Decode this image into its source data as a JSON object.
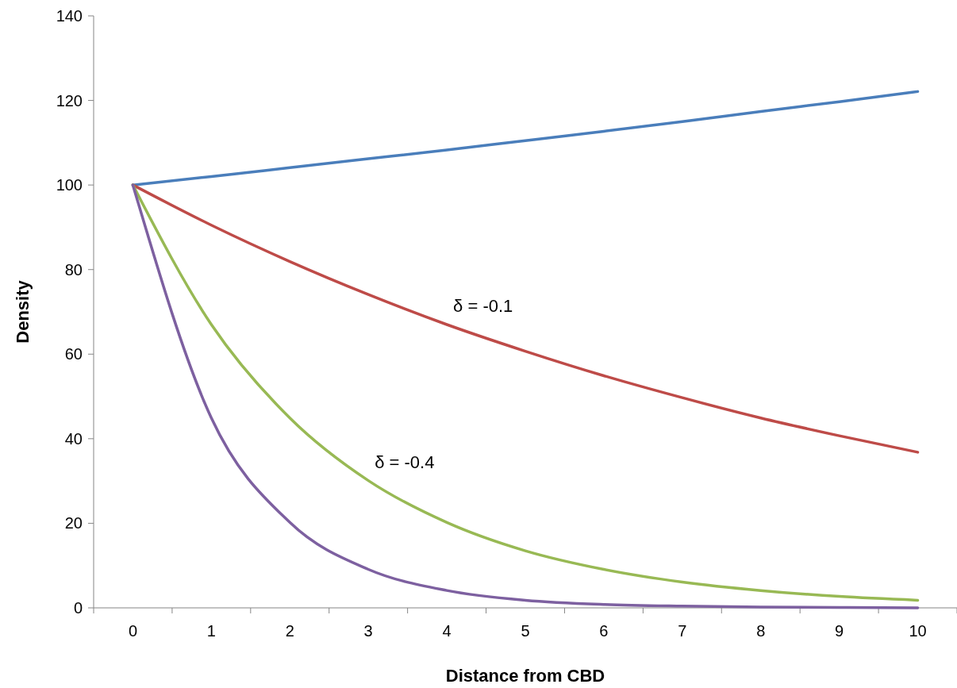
{
  "chart_data": {
    "type": "line",
    "xlabel": "Distance from CBD",
    "ylabel": "Density",
    "categories": [
      "0",
      "1",
      "2",
      "3",
      "4",
      "5",
      "6",
      "7",
      "8",
      "9",
      "10"
    ],
    "series": [
      {
        "color": "#4a7ebb",
        "values": [
          100,
          102,
          104.1,
          106.2,
          108.3,
          110.5,
          112.7,
          115,
          117.4,
          119.7,
          122.1
        ]
      },
      {
        "color": "#be4b48",
        "values": [
          100,
          90.5,
          81.9,
          74.1,
          67,
          60.7,
          54.9,
          49.7,
          44.9,
          40.7,
          36.8
        ]
      },
      {
        "color": "#98b954",
        "values": [
          100,
          67,
          44.9,
          30.1,
          20.2,
          13.5,
          9.1,
          6.1,
          4.1,
          2.7,
          1.8
        ]
      },
      {
        "color": "#7d60a0",
        "values": [
          100,
          44.9,
          20.2,
          9.1,
          4.1,
          1.8,
          0.8,
          0.4,
          0.2,
          0.1,
          0
        ]
      }
    ],
    "ylim": [
      0,
      140
    ],
    "yticks": [
      0,
      20,
      40,
      60,
      80,
      100,
      120,
      140
    ],
    "marker": "none",
    "line_style": "solid",
    "annotations": [
      {
        "text": "δ = -0.1",
        "x": "4",
        "y": 67
      },
      {
        "text": "δ = -0.4",
        "x": "3",
        "y": 30.1
      }
    ]
  }
}
